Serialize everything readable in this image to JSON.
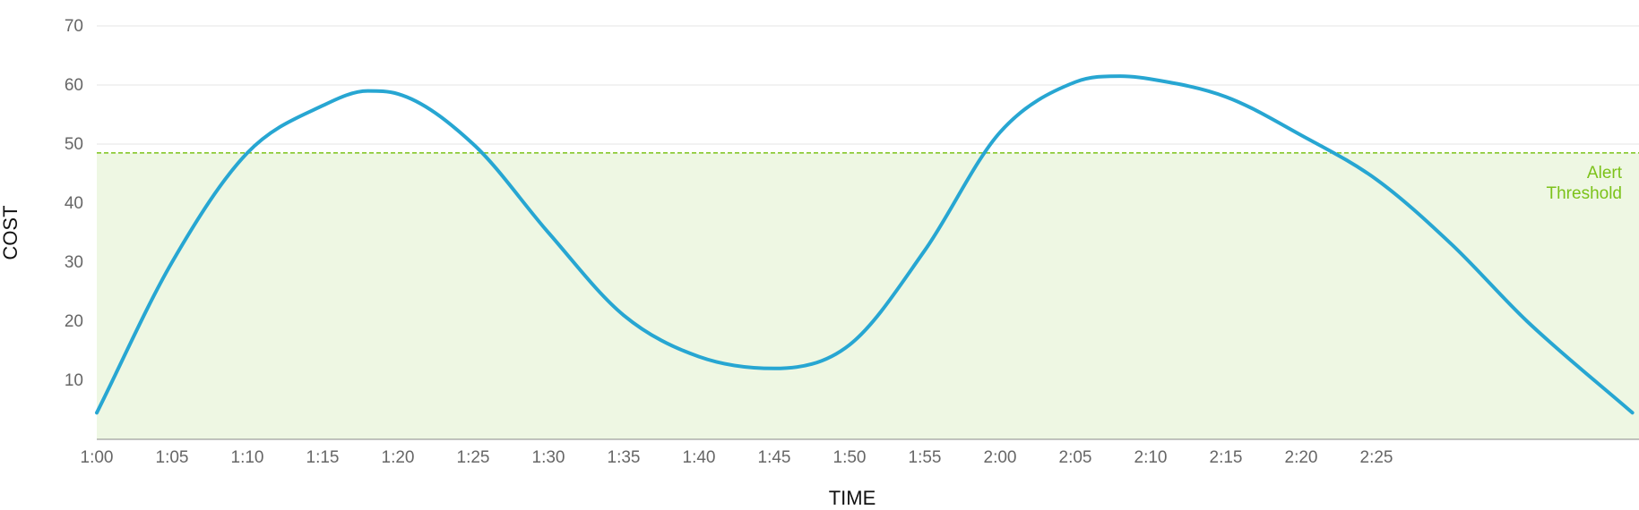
{
  "chart_data": {
    "type": "area",
    "title": "",
    "xlabel": "TIME",
    "ylabel": "COST",
    "x_ticks": [
      "1:00",
      "1:05",
      "1:10",
      "1:15",
      "1:20",
      "1:25",
      "1:30",
      "1:35",
      "1:40",
      "1:45",
      "1:50",
      "1:55",
      "2:00",
      "2:05",
      "2:10",
      "2:15",
      "2:20",
      "2:25"
    ],
    "y_ticks": [
      "10",
      "20",
      "30",
      "40",
      "50",
      "60",
      "70"
    ],
    "xlim": [
      "1:00",
      "2:42"
    ],
    "ylim": [
      0,
      70
    ],
    "grid": true,
    "threshold": {
      "value": 48.5,
      "label_line1": "Alert",
      "label_line2": "Threshold",
      "color": "#7cc21a",
      "fill": "#eef7e3"
    },
    "series": [
      {
        "color": "#27a6d2",
        "x": [
          "1:00",
          "1:05",
          "1:10",
          "1:15",
          "1:18",
          "1:20",
          "1:25",
          "1:30",
          "1:35",
          "1:40",
          "1:45",
          "1:50",
          "1:55",
          "2:00",
          "2:05",
          "2:08",
          "2:10",
          "2:15",
          "2:20",
          "2:25",
          "2:30",
          "2:35",
          "2:42"
        ],
        "y": [
          4.5,
          30,
          48.5,
          56.5,
          59,
          58.5,
          50,
          35,
          21,
          14,
          12,
          16,
          32,
          52,
          60.5,
          61.5,
          61,
          58,
          51.5,
          44,
          33,
          20,
          4.5
        ]
      }
    ]
  }
}
